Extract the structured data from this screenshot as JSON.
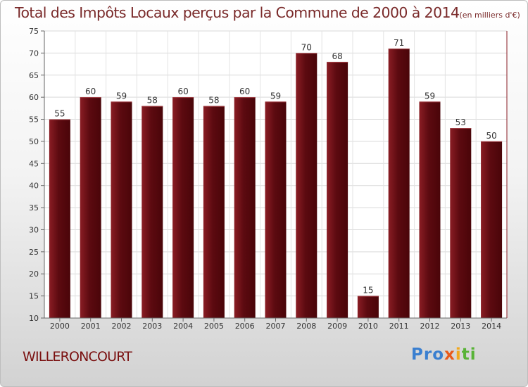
{
  "chart_data": {
    "type": "bar",
    "title": "Total des Impôts Locaux perçus par la Commune de 2000 à 2014",
    "unit_note": "(en milliers d'€)",
    "categories": [
      "2000",
      "2001",
      "2002",
      "2003",
      "2004",
      "2005",
      "2006",
      "2007",
      "2008",
      "2009",
      "2010",
      "2011",
      "2012",
      "2013",
      "2014"
    ],
    "values": [
      55,
      60,
      59,
      58,
      60,
      58,
      60,
      59,
      70,
      68,
      15,
      71,
      59,
      53,
      50
    ],
    "ylim": [
      10,
      75
    ],
    "yticks": [
      10,
      15,
      20,
      25,
      30,
      35,
      40,
      45,
      50,
      55,
      60,
      65,
      70,
      75
    ],
    "grid": true,
    "bar_color": "#6e1018"
  },
  "commune_name": "WILLERONCOURT",
  "logo": {
    "p1": "Pro",
    "p2": "x",
    "p3": "i",
    "p4": "ti"
  }
}
